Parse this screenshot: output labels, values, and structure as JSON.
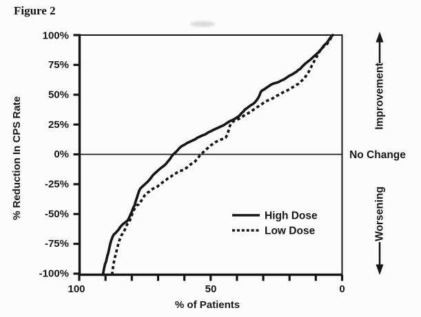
{
  "figure": {
    "title": "Figure 2"
  },
  "colors": {
    "ink": "#161616",
    "background": "#fcfcfc"
  },
  "chart_data": {
    "type": "line",
    "title": "Figure 2",
    "xlabel": "% of Patients",
    "ylabel": "% Reduction In CPS Rate",
    "x_axis": {
      "min": 0,
      "max": 100,
      "direction": "reversed",
      "tick_step": 10,
      "labeled_ticks": [
        "100",
        "50",
        "0"
      ]
    },
    "y_axis": {
      "min": -100,
      "max": 100,
      "tick_step": 25,
      "labeled_ticks": [
        "100%",
        "75%",
        "50%",
        "25%",
        "0%",
        "-25%",
        "-50%",
        "-75%",
        "-100%"
      ]
    },
    "grid": false,
    "zero_line": true,
    "legend": {
      "position": "inside-lower-right",
      "entries": [
        {
          "label": "High Dose",
          "style": "solid"
        },
        {
          "label": "Low Dose",
          "style": "dashed"
        }
      ]
    },
    "annotations": {
      "improvement": "Improvement",
      "no_change": "No Change",
      "worsening": "Worsening"
    },
    "series": [
      {
        "name": "High Dose",
        "style": "solid",
        "points": [
          [
            91,
            -101
          ],
          [
            90.6,
            -96
          ],
          [
            90.2,
            -92
          ],
          [
            89.8,
            -90
          ],
          [
            89.3,
            -85
          ],
          [
            89,
            -83
          ],
          [
            88.6,
            -79
          ],
          [
            88.2,
            -75
          ],
          [
            87.8,
            -72
          ],
          [
            87.3,
            -69
          ],
          [
            86.8,
            -67
          ],
          [
            86.2,
            -66
          ],
          [
            85.6,
            -64.5
          ],
          [
            85,
            -63
          ],
          [
            84.4,
            -61
          ],
          [
            84,
            -60
          ],
          [
            83.4,
            -58.5
          ],
          [
            82.8,
            -57.5
          ],
          [
            82.2,
            -56.5
          ],
          [
            81.6,
            -55.5
          ],
          [
            81,
            -53
          ],
          [
            80.4,
            -50
          ],
          [
            80,
            -48
          ],
          [
            79.4,
            -44.5
          ],
          [
            79,
            -43
          ],
          [
            78.4,
            -38.5
          ],
          [
            78,
            -36
          ],
          [
            77.6,
            -33
          ],
          [
            77.2,
            -30.5
          ],
          [
            76.7,
            -28.5
          ],
          [
            76,
            -27
          ],
          [
            75.2,
            -25.5
          ],
          [
            74.5,
            -24
          ],
          [
            74,
            -23
          ],
          [
            73,
            -20.5
          ],
          [
            72,
            -17.5
          ],
          [
            71.3,
            -16
          ],
          [
            70.5,
            -14.5
          ],
          [
            70,
            -13.5
          ],
          [
            69,
            -11.5
          ],
          [
            68,
            -10
          ],
          [
            67,
            -8
          ],
          [
            66.3,
            -6
          ],
          [
            65.5,
            -4
          ],
          [
            64.8,
            -1.5
          ],
          [
            64,
            0.5
          ],
          [
            63,
            2.5
          ],
          [
            62,
            5
          ],
          [
            61,
            7
          ],
          [
            60,
            8
          ],
          [
            59,
            9.5
          ],
          [
            58,
            10.5
          ],
          [
            57,
            11.5
          ],
          [
            56,
            12.5
          ],
          [
            55,
            14
          ],
          [
            54,
            15
          ],
          [
            53,
            16
          ],
          [
            52,
            16.8
          ],
          [
            51,
            18.3
          ],
          [
            50,
            19.3
          ],
          [
            49,
            20.5
          ],
          [
            48,
            21.5
          ],
          [
            47,
            22.5
          ],
          [
            46,
            23.5
          ],
          [
            45,
            24.5
          ],
          [
            44,
            26
          ],
          [
            43,
            27.5
          ],
          [
            42,
            28.5
          ],
          [
            41,
            29.5
          ],
          [
            40,
            31
          ],
          [
            39,
            32.5
          ],
          [
            38.5,
            34
          ],
          [
            37.5,
            36
          ],
          [
            37,
            37.5
          ],
          [
            36,
            39
          ],
          [
            35.5,
            40
          ],
          [
            34.5,
            41.5
          ],
          [
            34,
            42
          ],
          [
            33,
            44
          ],
          [
            32,
            47
          ],
          [
            31.5,
            49
          ],
          [
            31,
            52
          ],
          [
            30.5,
            53.5
          ],
          [
            30,
            54
          ],
          [
            29,
            55.5
          ],
          [
            28,
            57
          ],
          [
            27,
            58.5
          ],
          [
            26,
            59.5
          ],
          [
            25,
            60
          ],
          [
            24,
            60.8
          ],
          [
            23,
            62
          ],
          [
            22,
            63
          ],
          [
            21,
            64.5
          ],
          [
            20,
            66
          ],
          [
            19,
            67
          ],
          [
            18,
            68.5
          ],
          [
            17.5,
            69
          ],
          [
            16.5,
            71
          ],
          [
            16,
            71.5
          ],
          [
            15,
            74
          ],
          [
            14,
            76
          ],
          [
            13,
            77.8
          ],
          [
            12.3,
            79
          ],
          [
            11.5,
            80.5
          ],
          [
            10.8,
            82
          ],
          [
            10,
            83.5
          ],
          [
            9.4,
            84.8
          ],
          [
            9,
            85.5
          ],
          [
            8.5,
            87
          ],
          [
            8,
            88
          ],
          [
            7.5,
            89.5
          ],
          [
            7,
            91
          ],
          [
            6.3,
            92.5
          ],
          [
            5.8,
            93.5
          ],
          [
            5.2,
            95.5
          ],
          [
            4.6,
            97.5
          ],
          [
            4.2,
            98.5
          ],
          [
            3.8,
            99.5
          ],
          [
            3.5,
            100
          ]
        ]
      },
      {
        "name": "Low Dose",
        "style": "dashed",
        "points": [
          [
            87.5,
            -101
          ],
          [
            87.3,
            -97
          ],
          [
            87.1,
            -94
          ],
          [
            86.8,
            -90
          ],
          [
            86.4,
            -86
          ],
          [
            86,
            -83
          ],
          [
            85.6,
            -79
          ],
          [
            85.2,
            -75.5
          ],
          [
            84.8,
            -72.5
          ],
          [
            84.4,
            -70.5
          ],
          [
            84,
            -68
          ],
          [
            83.5,
            -66.5
          ],
          [
            83,
            -65
          ],
          [
            82.5,
            -62
          ],
          [
            82,
            -59.5
          ],
          [
            81.5,
            -58
          ],
          [
            81,
            -57
          ],
          [
            80.5,
            -54
          ],
          [
            80,
            -51
          ],
          [
            79.6,
            -48
          ],
          [
            79.2,
            -46.5
          ],
          [
            78.8,
            -45
          ],
          [
            78.4,
            -43.5
          ],
          [
            78,
            -42.5
          ],
          [
            77.4,
            -42
          ],
          [
            77,
            -40.5
          ],
          [
            76.4,
            -39
          ],
          [
            76,
            -37.5
          ],
          [
            75.4,
            -35.5
          ],
          [
            75,
            -34
          ],
          [
            74.4,
            -32.8
          ],
          [
            74,
            -32
          ],
          [
            73.4,
            -31.3
          ],
          [
            73,
            -30.5
          ],
          [
            72.4,
            -29.5
          ],
          [
            72,
            -28.8
          ],
          [
            71.4,
            -28.2
          ],
          [
            71,
            -28
          ],
          [
            70.4,
            -27.2
          ],
          [
            70,
            -26.5
          ],
          [
            69.4,
            -25.3
          ],
          [
            69,
            -24.5
          ],
          [
            68.4,
            -23.7
          ],
          [
            68,
            -23
          ],
          [
            67,
            -21.5
          ],
          [
            66,
            -19.5
          ],
          [
            65.4,
            -19
          ],
          [
            65,
            -18.5
          ],
          [
            64.4,
            -17.3
          ],
          [
            64,
            -16.5
          ],
          [
            63.4,
            -16
          ],
          [
            63,
            -15.5
          ],
          [
            62.4,
            -14.7
          ],
          [
            62,
            -14.2
          ],
          [
            61.4,
            -13.8
          ],
          [
            61,
            -13.5
          ],
          [
            60.4,
            -13
          ],
          [
            60,
            -12.5
          ],
          [
            59.4,
            -11.6
          ],
          [
            59,
            -11
          ],
          [
            58.4,
            -9.8
          ],
          [
            58,
            -9
          ],
          [
            57,
            -7.5
          ],
          [
            56,
            -6
          ],
          [
            55,
            -3.5
          ],
          [
            54.2,
            -1.2
          ],
          [
            53.5,
            0.5
          ],
          [
            53,
            1.5
          ],
          [
            52,
            3.5
          ],
          [
            51,
            5.5
          ],
          [
            50,
            7.5
          ],
          [
            49,
            9
          ],
          [
            48,
            10.5
          ],
          [
            47,
            11.5
          ],
          [
            46,
            12.5
          ],
          [
            45,
            13.2
          ],
          [
            44.3,
            14
          ],
          [
            43.7,
            16.5
          ],
          [
            43.2,
            20
          ],
          [
            42.8,
            23
          ],
          [
            42.4,
            25.5
          ],
          [
            42,
            26.5
          ],
          [
            41.3,
            27.8
          ],
          [
            40.6,
            28.5
          ],
          [
            40,
            29
          ],
          [
            39,
            30.2
          ],
          [
            38,
            31.5
          ],
          [
            37,
            33
          ],
          [
            36,
            34.2
          ],
          [
            35,
            35.5
          ],
          [
            34,
            37
          ],
          [
            33,
            38.5
          ],
          [
            32,
            40
          ],
          [
            31,
            41.5
          ],
          [
            30.5,
            42.2
          ],
          [
            30,
            43
          ],
          [
            29,
            44.5
          ],
          [
            28,
            45.5
          ],
          [
            27,
            46.2
          ],
          [
            26,
            47.5
          ],
          [
            25,
            49
          ],
          [
            24,
            50
          ],
          [
            23.5,
            50.6
          ],
          [
            22.5,
            52
          ],
          [
            22,
            52.5
          ],
          [
            21,
            53.5
          ],
          [
            20,
            54.5
          ],
          [
            19,
            56
          ],
          [
            18,
            57.2
          ],
          [
            17.3,
            58.3
          ],
          [
            16.7,
            59
          ],
          [
            16,
            60.5
          ],
          [
            15.3,
            61.8
          ],
          [
            15,
            62.5
          ],
          [
            14.3,
            64
          ],
          [
            14,
            65
          ],
          [
            13.4,
            66.8
          ],
          [
            13,
            68
          ],
          [
            12.5,
            70
          ],
          [
            12,
            72
          ],
          [
            11.5,
            74.5
          ],
          [
            11,
            76.5
          ],
          [
            10.5,
            78.5
          ],
          [
            10,
            80.5
          ],
          [
            9.5,
            82.5
          ],
          [
            9,
            84.5
          ],
          [
            8.5,
            86.5
          ],
          [
            8,
            88
          ],
          [
            7.7,
            88.7
          ],
          [
            7.3,
            89.7
          ],
          [
            7,
            90.3
          ],
          [
            6.5,
            90.8
          ],
          [
            6.2,
            91.2
          ],
          [
            5.8,
            92.3
          ],
          [
            5.4,
            93.6
          ],
          [
            5,
            95
          ],
          [
            4.6,
            96.3
          ],
          [
            4.2,
            97.8
          ],
          [
            3.8,
            99
          ],
          [
            3.4,
            100
          ]
        ]
      }
    ]
  }
}
